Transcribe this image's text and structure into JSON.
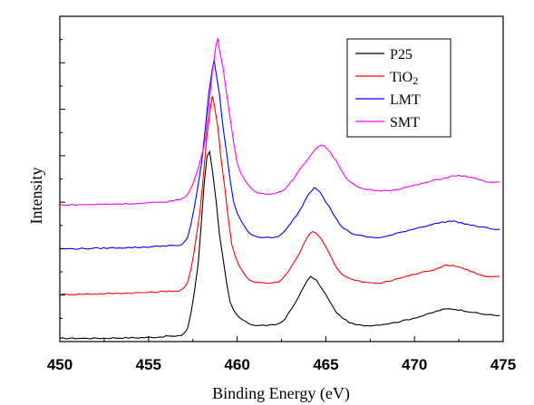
{
  "chart_data": {
    "type": "line",
    "title": "",
    "xlabel": "Binding Energy (eV)",
    "ylabel": "Intensity",
    "xlim": [
      450,
      475
    ],
    "ylim": [
      0,
      1
    ],
    "x_ticks": [
      450,
      455,
      460,
      465,
      470,
      475
    ],
    "x_tick_labels": [
      "450",
      "455",
      "460",
      "465",
      "470",
      "475"
    ],
    "y_tick_labels_shown": false,
    "grid": false,
    "legend_position": "top-right",
    "series": [
      {
        "name": "P25",
        "color": "#000000",
        "baseline": 0.01,
        "points": [
          [
            450,
            0.01
          ],
          [
            453,
            0.011
          ],
          [
            456,
            0.016
          ],
          [
            457.2,
            0.04
          ],
          [
            457.8,
            0.24
          ],
          [
            458.3,
            0.57
          ],
          [
            458.6,
            0.53
          ],
          [
            459.0,
            0.33
          ],
          [
            459.6,
            0.12
          ],
          [
            460.5,
            0.06
          ],
          [
            461.5,
            0.05
          ],
          [
            462.5,
            0.06
          ],
          [
            463.3,
            0.12
          ],
          [
            464.0,
            0.19
          ],
          [
            464.3,
            0.195
          ],
          [
            464.8,
            0.16
          ],
          [
            465.6,
            0.09
          ],
          [
            466.5,
            0.055
          ],
          [
            467.5,
            0.05
          ],
          [
            469,
            0.06
          ],
          [
            470.5,
            0.08
          ],
          [
            471.8,
            0.1
          ],
          [
            472.8,
            0.095
          ],
          [
            473.8,
            0.085
          ],
          [
            474.8,
            0.08
          ]
        ]
      },
      {
        "name": "TiO2",
        "legend_label": "TiO",
        "legend_subscript": "2",
        "color": "#ff0000",
        "baseline": 0.145,
        "points": [
          [
            450,
            0.145
          ],
          [
            453,
            0.148
          ],
          [
            456,
            0.155
          ],
          [
            457.2,
            0.18
          ],
          [
            457.9,
            0.4
          ],
          [
            458.5,
            0.72
          ],
          [
            458.7,
            0.73
          ],
          [
            459.1,
            0.56
          ],
          [
            459.7,
            0.3
          ],
          [
            460.5,
            0.2
          ],
          [
            461.5,
            0.18
          ],
          [
            462.5,
            0.19
          ],
          [
            463.4,
            0.26
          ],
          [
            464.1,
            0.33
          ],
          [
            464.4,
            0.335
          ],
          [
            464.9,
            0.3
          ],
          [
            465.7,
            0.22
          ],
          [
            466.5,
            0.19
          ],
          [
            468,
            0.18
          ],
          [
            469.5,
            0.2
          ],
          [
            471,
            0.22
          ],
          [
            472.0,
            0.235
          ],
          [
            473,
            0.22
          ],
          [
            474,
            0.2
          ],
          [
            474.8,
            0.2
          ]
        ]
      },
      {
        "name": "LMT",
        "color": "#0000ff",
        "baseline": 0.285,
        "points": [
          [
            450,
            0.285
          ],
          [
            453,
            0.288
          ],
          [
            456,
            0.295
          ],
          [
            457.2,
            0.32
          ],
          [
            458.0,
            0.55
          ],
          [
            458.6,
            0.84
          ],
          [
            458.8,
            0.83
          ],
          [
            459.2,
            0.66
          ],
          [
            459.8,
            0.43
          ],
          [
            460.6,
            0.34
          ],
          [
            461.5,
            0.32
          ],
          [
            462.5,
            0.33
          ],
          [
            463.5,
            0.4
          ],
          [
            464.2,
            0.465
          ],
          [
            464.5,
            0.47
          ],
          [
            465.0,
            0.43
          ],
          [
            465.8,
            0.36
          ],
          [
            466.6,
            0.33
          ],
          [
            468,
            0.32
          ],
          [
            469.5,
            0.34
          ],
          [
            471,
            0.36
          ],
          [
            472.1,
            0.37
          ],
          [
            473,
            0.36
          ],
          [
            474,
            0.35
          ],
          [
            474.8,
            0.345
          ]
        ]
      },
      {
        "name": "SMT",
        "color": "#ff00ff",
        "baseline": 0.42,
        "points": [
          [
            450,
            0.42
          ],
          [
            453,
            0.423
          ],
          [
            456,
            0.43
          ],
          [
            457.3,
            0.46
          ],
          [
            458.2,
            0.62
          ],
          [
            458.8,
            0.91
          ],
          [
            459.0,
            0.9
          ],
          [
            459.4,
            0.76
          ],
          [
            460.0,
            0.55
          ],
          [
            460.8,
            0.47
          ],
          [
            461.7,
            0.455
          ],
          [
            462.7,
            0.47
          ],
          [
            463.7,
            0.54
          ],
          [
            464.6,
            0.6
          ],
          [
            464.9,
            0.6
          ],
          [
            465.4,
            0.57
          ],
          [
            466.2,
            0.5
          ],
          [
            467,
            0.47
          ],
          [
            468.5,
            0.465
          ],
          [
            470,
            0.48
          ],
          [
            471.5,
            0.5
          ],
          [
            472.5,
            0.51
          ],
          [
            473.5,
            0.5
          ],
          [
            474.2,
            0.49
          ],
          [
            474.8,
            0.49
          ]
        ]
      }
    ]
  }
}
